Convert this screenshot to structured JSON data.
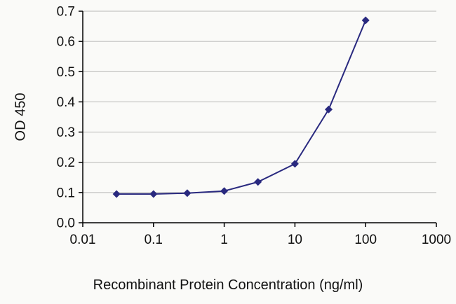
{
  "chart_data": {
    "type": "line",
    "title": "",
    "xlabel": "Recombinant Protein Concentration (ng/ml)",
    "ylabel": "OD 450",
    "xscale": "log",
    "xlim": [
      0.01,
      1000
    ],
    "ylim": [
      0,
      0.7
    ],
    "x_tick_values": [
      0.01,
      0.1,
      1,
      10,
      100,
      1000
    ],
    "x_tick_labels": [
      "0.01",
      "0.1",
      "1",
      "10",
      "100",
      "1000"
    ],
    "y_tick_step": 0.1,
    "y_tick_labels": [
      "0.0",
      "0.1",
      "0.2",
      "0.3",
      "0.4",
      "0.5",
      "0.6",
      "0.7"
    ],
    "grid": "horizontal",
    "gridline_color": "#b8b8b6",
    "axis_color": "#000000",
    "series": [
      {
        "name": "OD 450",
        "marker": "diamond",
        "color": "#29297f",
        "x": [
          0.03,
          0.1,
          0.3,
          1,
          3,
          10,
          30,
          100
        ],
        "y": [
          0.095,
          0.095,
          0.098,
          0.105,
          0.135,
          0.195,
          0.375,
          0.67
        ]
      }
    ]
  }
}
